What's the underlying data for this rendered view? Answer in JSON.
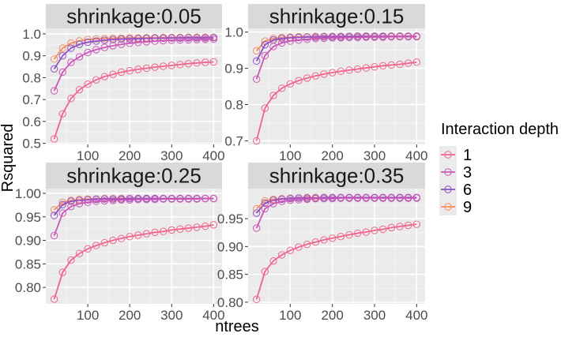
{
  "chart_data": {
    "type": "line",
    "xlabel": "ntrees",
    "ylabel": "Rsquared",
    "legend_title": "Interaction depth",
    "legend_position": "right",
    "x": [
      20,
      40,
      60,
      80,
      100,
      120,
      140,
      160,
      180,
      200,
      220,
      240,
      260,
      280,
      300,
      320,
      340,
      360,
      380,
      400
    ],
    "series_styles": [
      {
        "name": "1",
        "color": "#f0648c"
      },
      {
        "name": "3",
        "color": "#cc55b8"
      },
      {
        "name": "6",
        "color": "#8c50c8"
      },
      {
        "name": "9",
        "color": "#f58c64"
      }
    ],
    "panels": [
      {
        "title": "shrinkage:0.05",
        "xlim": [
          0,
          420
        ],
        "ylim": [
          0.495,
          1.025
        ],
        "xticks": [
          100,
          200,
          300,
          400
        ],
        "yticks": [
          0.5,
          0.6,
          0.7,
          0.8,
          0.9,
          1.0
        ],
        "ytick_labels": [
          "0.5",
          "0.6",
          "0.7",
          "0.8",
          "0.9",
          "1.0"
        ],
        "series": [
          {
            "name": "1",
            "values": [
              0.52,
              0.635,
              0.705,
              0.745,
              0.77,
              0.79,
              0.805,
              0.815,
              0.825,
              0.832,
              0.838,
              0.843,
              0.848,
              0.852,
              0.856,
              0.86,
              0.864,
              0.867,
              0.87,
              0.872
            ]
          },
          {
            "name": "3",
            "values": [
              0.74,
              0.825,
              0.87,
              0.895,
              0.915,
              0.928,
              0.938,
              0.946,
              0.952,
              0.957,
              0.961,
              0.964,
              0.967,
              0.969,
              0.971,
              0.972,
              0.973,
              0.974,
              0.975,
              0.976
            ]
          },
          {
            "name": "6",
            "values": [
              0.84,
              0.9,
              0.935,
              0.952,
              0.962,
              0.967,
              0.971,
              0.974,
              0.976,
              0.977,
              0.978,
              0.979,
              0.98,
              0.98,
              0.981,
              0.981,
              0.982,
              0.982,
              0.982,
              0.983
            ]
          },
          {
            "name": "9",
            "values": [
              0.885,
              0.935,
              0.958,
              0.968,
              0.974,
              0.977,
              0.979,
              0.98,
              0.981,
              0.982,
              0.982,
              0.983,
              0.983,
              0.984,
              0.984,
              0.984,
              0.985,
              0.985,
              0.985,
              0.985
            ]
          }
        ]
      },
      {
        "title": "shrinkage:0.15",
        "xlim": [
          0,
          420
        ],
        "ylim": [
          0.69,
          1.01
        ],
        "xticks": [
          100,
          200,
          300,
          400
        ],
        "yticks": [
          0.7,
          0.8,
          0.9,
          1.0
        ],
        "ytick_labels": [
          "0.7",
          "0.8",
          "0.9",
          "1.0"
        ],
        "series": [
          {
            "name": "1",
            "values": [
              0.7,
              0.79,
              0.825,
              0.845,
              0.857,
              0.866,
              0.873,
              0.879,
              0.884,
              0.888,
              0.892,
              0.895,
              0.898,
              0.901,
              0.904,
              0.907,
              0.909,
              0.911,
              0.914,
              0.917
            ]
          },
          {
            "name": "3",
            "values": [
              0.87,
              0.935,
              0.96,
              0.97,
              0.975,
              0.978,
              0.98,
              0.982,
              0.983,
              0.984,
              0.984,
              0.985,
              0.985,
              0.986,
              0.986,
              0.986,
              0.987,
              0.987,
              0.987,
              0.987
            ]
          },
          {
            "name": "6",
            "values": [
              0.92,
              0.965,
              0.978,
              0.982,
              0.984,
              0.985,
              0.986,
              0.986,
              0.987,
              0.987,
              0.987,
              0.988,
              0.988,
              0.988,
              0.988,
              0.988,
              0.988,
              0.988,
              0.988,
              0.988
            ]
          },
          {
            "name": "9",
            "values": [
              0.948,
              0.975,
              0.982,
              0.985,
              0.986,
              0.987,
              0.987,
              0.988,
              0.988,
              0.988,
              0.988,
              0.988,
              0.989,
              0.989,
              0.989,
              0.989,
              0.989,
              0.989,
              0.989,
              0.989
            ]
          }
        ]
      },
      {
        "title": "shrinkage:0.25",
        "xlim": [
          0,
          420
        ],
        "ylim": [
          0.765,
          1.01
        ],
        "xticks": [
          100,
          200,
          300,
          400
        ],
        "yticks": [
          0.8,
          0.85,
          0.9,
          0.95,
          1.0
        ],
        "ytick_labels": [
          "0.80",
          "0.85",
          "0.90",
          "0.95",
          "1.00"
        ],
        "series": [
          {
            "name": "1",
            "values": [
              0.775,
              0.832,
              0.858,
              0.872,
              0.882,
              0.889,
              0.895,
              0.9,
              0.904,
              0.908,
              0.911,
              0.914,
              0.917,
              0.919,
              0.922,
              0.924,
              0.926,
              0.928,
              0.93,
              0.933
            ]
          },
          {
            "name": "3",
            "values": [
              0.91,
              0.958,
              0.972,
              0.978,
              0.981,
              0.983,
              0.984,
              0.985,
              0.986,
              0.986,
              0.987,
              0.987,
              0.987,
              0.988,
              0.988,
              0.988,
              0.988,
              0.988,
              0.989,
              0.989
            ]
          },
          {
            "name": "6",
            "values": [
              0.953,
              0.976,
              0.983,
              0.985,
              0.986,
              0.987,
              0.988,
              0.988,
              0.988,
              0.989,
              0.989,
              0.989,
              0.989,
              0.989,
              0.989,
              0.989,
              0.989,
              0.989,
              0.989,
              0.989
            ]
          },
          {
            "name": "9",
            "values": [
              0.965,
              0.981,
              0.985,
              0.987,
              0.988,
              0.988,
              0.989,
              0.989,
              0.989,
              0.989,
              0.989,
              0.989,
              0.989,
              0.989,
              0.989,
              0.989,
              0.989,
              0.989,
              0.989,
              0.989
            ]
          }
        ]
      },
      {
        "title": "shrinkage:0.35",
        "xlim": [
          0,
          420
        ],
        "ylim": [
          0.797,
          1.004
        ],
        "xticks": [
          100,
          200,
          300,
          400
        ],
        "yticks": [
          0.8,
          0.85,
          0.9,
          0.95
        ],
        "ytick_labels": [
          "0.80",
          "0.85",
          "0.90",
          "0.95"
        ],
        "series": [
          {
            "name": "1",
            "values": [
              0.805,
              0.855,
              0.874,
              0.885,
              0.893,
              0.899,
              0.904,
              0.908,
              0.912,
              0.915,
              0.918,
              0.921,
              0.924,
              0.926,
              0.929,
              0.931,
              0.934,
              0.936,
              0.938,
              0.94
            ]
          },
          {
            "name": "3",
            "values": [
              0.933,
              0.968,
              0.977,
              0.981,
              0.983,
              0.984,
              0.985,
              0.986,
              0.986,
              0.986,
              0.987,
              0.987,
              0.987,
              0.987,
              0.987,
              0.987,
              0.987,
              0.987,
              0.987,
              0.987
            ]
          },
          {
            "name": "6",
            "values": [
              0.96,
              0.978,
              0.983,
              0.985,
              0.986,
              0.987,
              0.987,
              0.987,
              0.988,
              0.988,
              0.988,
              0.988,
              0.988,
              0.988,
              0.988,
              0.988,
              0.988,
              0.988,
              0.988,
              0.988
            ]
          },
          {
            "name": "9",
            "values": [
              0.968,
              0.982,
              0.985,
              0.986,
              0.987,
              0.987,
              0.988,
              0.988,
              0.988,
              0.988,
              0.988,
              0.988,
              0.988,
              0.988,
              0.988,
              0.988,
              0.988,
              0.988,
              0.988,
              0.988
            ]
          }
        ]
      }
    ]
  }
}
